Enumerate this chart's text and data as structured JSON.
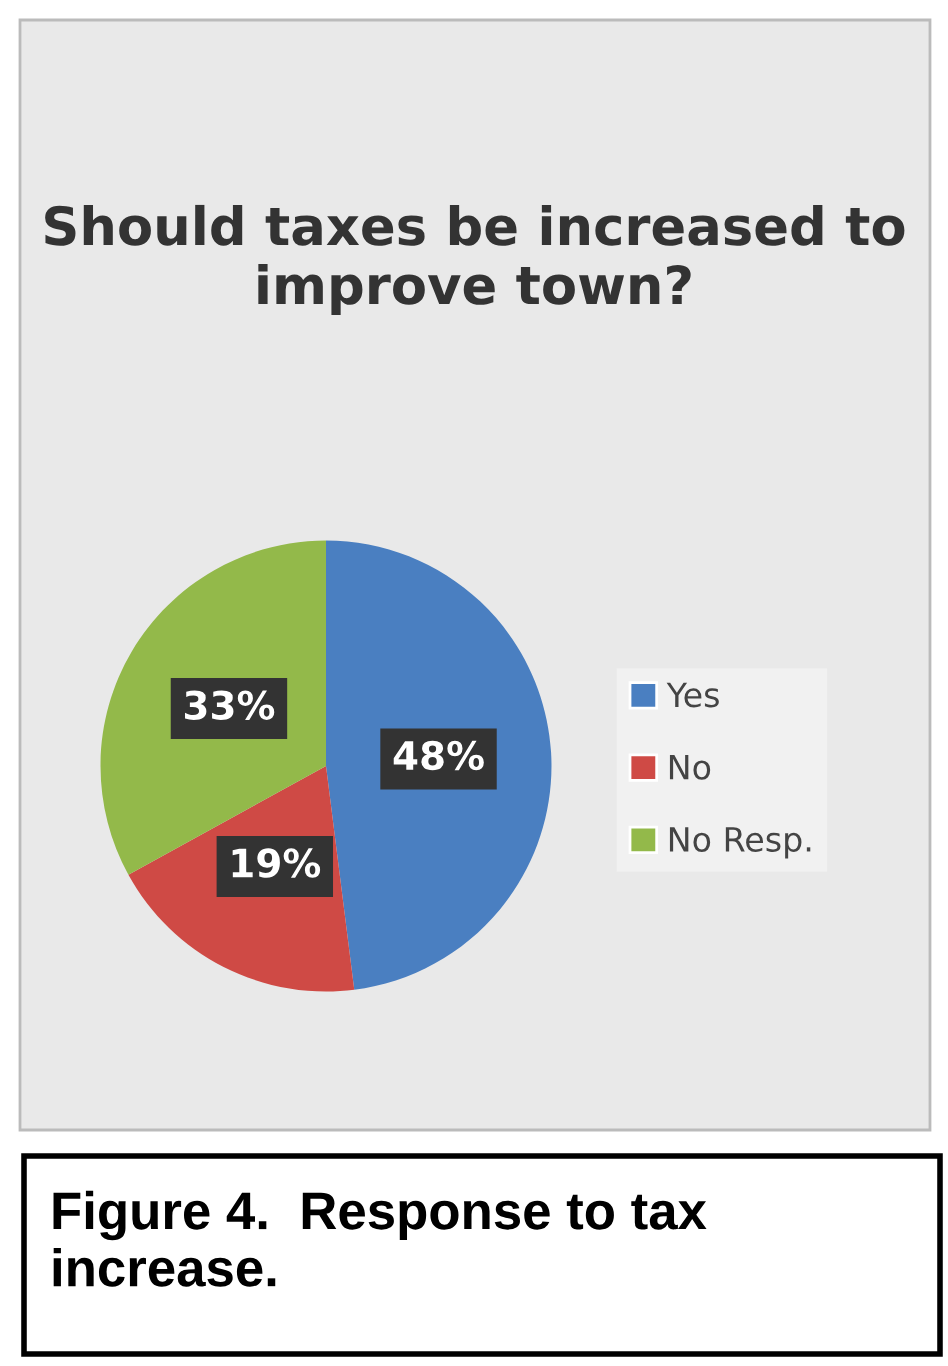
{
  "chart_data": {
    "type": "pie",
    "title": "Should taxes be increased to improve town?",
    "categories": [
      "Yes",
      "No",
      "No Resp."
    ],
    "values": [
      48,
      19,
      33
    ],
    "colors": [
      "#4a7fc1",
      "#cf4a45",
      "#93b94a"
    ],
    "value_labels": [
      "48%",
      "19%",
      "33%"
    ],
    "legend": "right",
    "annotations": [
      "Figure 4.  Response to tax increase."
    ]
  }
}
